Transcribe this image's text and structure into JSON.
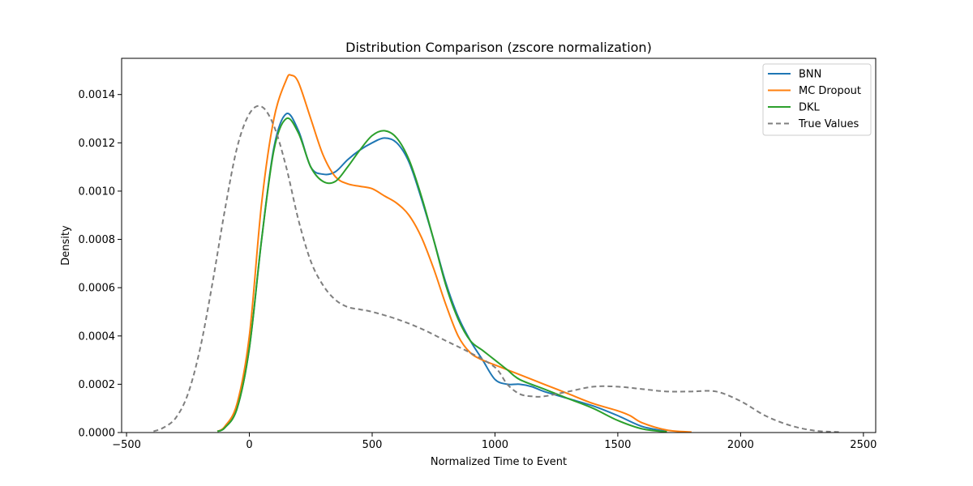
{
  "chart_data": {
    "type": "line",
    "title": "Distribution Comparison (zscore normalization)",
    "xlabel": "Normalized Time to Event",
    "ylabel": "Density",
    "xlim": [
      -520,
      2550
    ],
    "ylim": [
      0,
      0.00155
    ],
    "xticks": [
      -500,
      0,
      500,
      1000,
      1500,
      2000,
      2500
    ],
    "xtick_labels": [
      "−500",
      "0",
      "500",
      "1000",
      "1500",
      "2000",
      "2500"
    ],
    "yticks": [
      0,
      0.0002,
      0.0004,
      0.0006,
      0.0008,
      0.001,
      0.0012,
      0.0014
    ],
    "ytick_labels": [
      "0.0000",
      "0.0002",
      "0.0004",
      "0.0006",
      "0.0008",
      "0.0010",
      "0.0012",
      "0.0014"
    ],
    "grid": false,
    "legend_position": "top-right",
    "series": [
      {
        "name": "BNN",
        "color": "#1f77b4",
        "dash": "solid",
        "points": [
          [
            -130,
            5e-06
          ],
          [
            -100,
            2e-05
          ],
          [
            -50,
            0.0001
          ],
          [
            0,
            0.00035
          ],
          [
            50,
            0.0008
          ],
          [
            100,
            0.00118
          ],
          [
            150,
            0.00132
          ],
          [
            200,
            0.00125
          ],
          [
            250,
            0.0011
          ],
          [
            300,
            0.00107
          ],
          [
            350,
            0.00108
          ],
          [
            400,
            0.00113
          ],
          [
            450,
            0.00117
          ],
          [
            500,
            0.0012
          ],
          [
            550,
            0.00122
          ],
          [
            600,
            0.0012
          ],
          [
            650,
            0.00112
          ],
          [
            700,
            0.00097
          ],
          [
            750,
            0.0008
          ],
          [
            800,
            0.00062
          ],
          [
            850,
            0.00048
          ],
          [
            900,
            0.00038
          ],
          [
            950,
            0.0003
          ],
          [
            1000,
            0.00022
          ],
          [
            1050,
            0.0002
          ],
          [
            1100,
            0.0002
          ],
          [
            1150,
            0.00019
          ],
          [
            1200,
            0.00017
          ],
          [
            1300,
            0.00014
          ],
          [
            1400,
            0.00011
          ],
          [
            1500,
            7e-05
          ],
          [
            1600,
            2.5e-05
          ],
          [
            1700,
            5e-06
          ]
        ]
      },
      {
        "name": "MC Dropout",
        "color": "#ff7f0e",
        "dash": "solid",
        "points": [
          [
            -130,
            5e-06
          ],
          [
            -100,
            2.5e-05
          ],
          [
            -50,
            0.00012
          ],
          [
            0,
            0.0004
          ],
          [
            50,
            0.00095
          ],
          [
            100,
            0.0013
          ],
          [
            150,
            0.00146
          ],
          [
            170,
            0.00148
          ],
          [
            200,
            0.00145
          ],
          [
            250,
            0.0013
          ],
          [
            300,
            0.00115
          ],
          [
            350,
            0.00106
          ],
          [
            400,
            0.00103
          ],
          [
            450,
            0.00102
          ],
          [
            500,
            0.00101
          ],
          [
            550,
            0.00098
          ],
          [
            600,
            0.00095
          ],
          [
            650,
            0.0009
          ],
          [
            700,
            0.00081
          ],
          [
            750,
            0.00068
          ],
          [
            800,
            0.00053
          ],
          [
            850,
            0.0004
          ],
          [
            900,
            0.00033
          ],
          [
            950,
            0.0003
          ],
          [
            1000,
            0.00028
          ],
          [
            1050,
            0.00026
          ],
          [
            1100,
            0.00024
          ],
          [
            1200,
            0.0002
          ],
          [
            1300,
            0.00016
          ],
          [
            1400,
            0.00012
          ],
          [
            1500,
            9e-05
          ],
          [
            1550,
            7e-05
          ],
          [
            1600,
            4e-05
          ],
          [
            1700,
            1e-05
          ],
          [
            1800,
            2e-06
          ]
        ]
      },
      {
        "name": "DKL",
        "color": "#2ca02c",
        "dash": "solid",
        "points": [
          [
            -130,
            5e-06
          ],
          [
            -100,
            2e-05
          ],
          [
            -50,
            0.0001
          ],
          [
            0,
            0.00035
          ],
          [
            50,
            0.0008
          ],
          [
            100,
            0.00117
          ],
          [
            150,
            0.0013
          ],
          [
            200,
            0.00124
          ],
          [
            250,
            0.0011
          ],
          [
            300,
            0.00104
          ],
          [
            350,
            0.00104
          ],
          [
            400,
            0.0011
          ],
          [
            450,
            0.00117
          ],
          [
            500,
            0.00123
          ],
          [
            550,
            0.00125
          ],
          [
            600,
            0.00122
          ],
          [
            650,
            0.00113
          ],
          [
            700,
            0.00098
          ],
          [
            750,
            0.0008
          ],
          [
            800,
            0.00061
          ],
          [
            850,
            0.00047
          ],
          [
            900,
            0.00038
          ],
          [
            950,
            0.00034
          ],
          [
            1000,
            0.0003
          ],
          [
            1050,
            0.00026
          ],
          [
            1100,
            0.00022
          ],
          [
            1200,
            0.00018
          ],
          [
            1300,
            0.00014
          ],
          [
            1400,
            0.0001
          ],
          [
            1500,
            5e-05
          ],
          [
            1600,
            1.5e-05
          ],
          [
            1700,
            3e-06
          ]
        ]
      },
      {
        "name": "True Values",
        "color": "#7f7f7f",
        "dash": "dashed",
        "points": [
          [
            -390,
            5e-06
          ],
          [
            -350,
            2e-05
          ],
          [
            -300,
            6e-05
          ],
          [
            -250,
            0.00016
          ],
          [
            -200,
            0.00035
          ],
          [
            -150,
            0.00062
          ],
          [
            -100,
            0.00092
          ],
          [
            -50,
            0.00118
          ],
          [
            0,
            0.00132
          ],
          [
            50,
            0.00135
          ],
          [
            100,
            0.00127
          ],
          [
            150,
            0.0011
          ],
          [
            200,
            0.00088
          ],
          [
            250,
            0.00071
          ],
          [
            300,
            0.00061
          ],
          [
            350,
            0.00055
          ],
          [
            400,
            0.00052
          ],
          [
            450,
            0.00051
          ],
          [
            500,
            0.0005
          ],
          [
            600,
            0.00047
          ],
          [
            700,
            0.00043
          ],
          [
            800,
            0.00038
          ],
          [
            900,
            0.00033
          ],
          [
            1000,
            0.00027
          ],
          [
            1050,
            0.0002
          ],
          [
            1100,
            0.00016
          ],
          [
            1150,
            0.00015
          ],
          [
            1200,
            0.00015
          ],
          [
            1300,
            0.00017
          ],
          [
            1400,
            0.00019
          ],
          [
            1500,
            0.00019
          ],
          [
            1600,
            0.00018
          ],
          [
            1700,
            0.00017
          ],
          [
            1800,
            0.00017
          ],
          [
            1900,
            0.00017
          ],
          [
            2000,
            0.00013
          ],
          [
            2100,
            7e-05
          ],
          [
            2200,
            3e-05
          ],
          [
            2300,
            8e-06
          ],
          [
            2400,
            2e-06
          ]
        ]
      }
    ]
  }
}
